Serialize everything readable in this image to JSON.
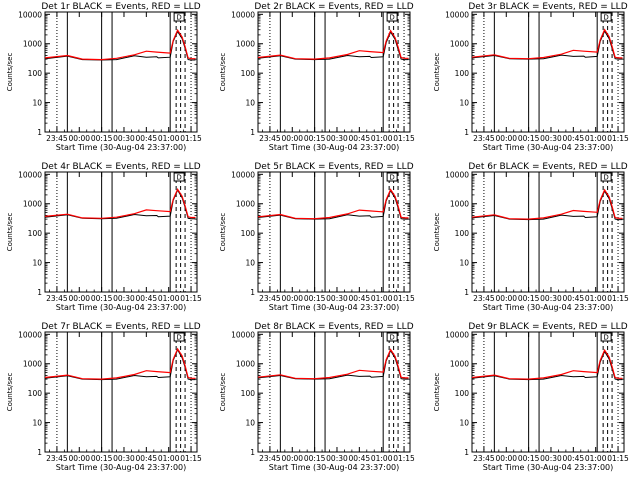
{
  "colors": {
    "events": "#000000",
    "lld": "#ff0000",
    "background": "#ffffff",
    "axes": "#000000"
  },
  "common": {
    "ylabel": "Counts/sec",
    "xlabel": "Start Time (30-Aug-04 23:37:00)",
    "x_ticks": [
      "23:45",
      "00:00",
      "00:15",
      "00:30",
      "00:45",
      "01:00",
      "01:15"
    ],
    "y_ticks": [
      "1",
      "10",
      "100",
      "1000",
      "10000"
    ],
    "marker": "D"
  },
  "chart_data": [
    {
      "type": "line",
      "title": "Det 1r BLACK = Events, RED = LLD",
      "x_unit": "minutes after 23:37:00",
      "xlim": [
        0,
        102
      ],
      "ylim": [
        1,
        12000
      ],
      "y_scale": "log",
      "series": [
        {
          "name": "Events",
          "x": [
            0,
            15,
            25,
            38,
            48,
            60,
            68,
            75,
            76,
            84,
            86,
            89,
            92,
            94,
            96,
            98,
            101
          ],
          "y": [
            310,
            380,
            290,
            280,
            290,
            390,
            350,
            360,
            330,
            350,
            1200,
            2600,
            1500,
            700,
            290,
            280,
            280
          ]
        },
        {
          "name": "LLD",
          "x": [
            0,
            15,
            25,
            38,
            48,
            60,
            68,
            75,
            84,
            86,
            89,
            92,
            94,
            96,
            98,
            101
          ],
          "y": [
            330,
            400,
            300,
            290,
            320,
            420,
            560,
            520,
            480,
            1300,
            2900,
            1700,
            800,
            330,
            310,
            310
          ]
        }
      ]
    },
    {
      "type": "line",
      "title": "Det 2r BLACK = Events, RED = LLD",
      "x_unit": "minutes after 23:37:00",
      "xlim": [
        0,
        102
      ],
      "ylim": [
        1,
        12000
      ],
      "y_scale": "log",
      "series": [
        {
          "name": "Events",
          "x": [
            0,
            15,
            25,
            38,
            48,
            60,
            68,
            75,
            76,
            84,
            86,
            89,
            92,
            94,
            96,
            98,
            101
          ],
          "y": [
            320,
            390,
            300,
            290,
            300,
            400,
            360,
            370,
            340,
            360,
            1100,
            2500,
            1400,
            650,
            300,
            290,
            290
          ]
        },
        {
          "name": "LLD",
          "x": [
            0,
            15,
            25,
            38,
            48,
            60,
            68,
            75,
            84,
            86,
            89,
            92,
            94,
            96,
            98,
            101
          ],
          "y": [
            340,
            410,
            310,
            300,
            330,
            430,
            580,
            540,
            500,
            1250,
            2800,
            1600,
            780,
            340,
            320,
            320
          ]
        }
      ]
    },
    {
      "type": "line",
      "title": "Det 3r BLACK = Events, RED = LLD",
      "x_unit": "minutes after 23:37:00",
      "xlim": [
        0,
        102
      ],
      "ylim": [
        1,
        12000
      ],
      "y_scale": "log",
      "series": [
        {
          "name": "Events",
          "x": [
            0,
            15,
            25,
            38,
            48,
            60,
            68,
            75,
            76,
            84,
            86,
            89,
            92,
            94,
            96,
            98,
            101
          ],
          "y": [
            330,
            400,
            310,
            300,
            310,
            410,
            370,
            380,
            350,
            370,
            1200,
            2700,
            1500,
            700,
            310,
            300,
            300
          ]
        },
        {
          "name": "LLD",
          "x": [
            0,
            15,
            25,
            38,
            48,
            60,
            68,
            75,
            84,
            86,
            89,
            92,
            94,
            96,
            98,
            101
          ],
          "y": [
            350,
            420,
            320,
            310,
            340,
            440,
            600,
            560,
            520,
            1350,
            3000,
            1750,
            820,
            350,
            330,
            330
          ]
        }
      ]
    },
    {
      "type": "line",
      "title": "Det 4r BLACK = Events, RED = LLD",
      "x_unit": "minutes after 23:37:00",
      "xlim": [
        0,
        102
      ],
      "ylim": [
        1,
        12000
      ],
      "y_scale": "log",
      "series": [
        {
          "name": "Events",
          "x": [
            0,
            15,
            25,
            38,
            48,
            60,
            68,
            75,
            76,
            84,
            86,
            89,
            92,
            94,
            96,
            98,
            101
          ],
          "y": [
            350,
            420,
            320,
            310,
            320,
            430,
            390,
            400,
            360,
            380,
            1300,
            2900,
            1600,
            750,
            320,
            310,
            310
          ]
        },
        {
          "name": "LLD",
          "x": [
            0,
            15,
            25,
            38,
            48,
            60,
            68,
            75,
            84,
            86,
            89,
            92,
            94,
            96,
            98,
            101
          ],
          "y": [
            370,
            440,
            330,
            320,
            350,
            460,
            620,
            580,
            540,
            1400,
            3100,
            1800,
            850,
            360,
            340,
            340
          ]
        }
      ]
    },
    {
      "type": "line",
      "title": "Det 5r BLACK = Events, RED = LLD",
      "x_unit": "minutes after 23:37:00",
      "xlim": [
        0,
        102
      ],
      "ylim": [
        1,
        12000
      ],
      "y_scale": "log",
      "series": [
        {
          "name": "Events",
          "x": [
            0,
            15,
            25,
            38,
            48,
            60,
            68,
            75,
            76,
            84,
            86,
            89,
            92,
            94,
            96,
            98,
            101
          ],
          "y": [
            340,
            410,
            310,
            300,
            310,
            420,
            380,
            390,
            350,
            370,
            1250,
            2800,
            1550,
            720,
            310,
            300,
            300
          ]
        },
        {
          "name": "LLD",
          "x": [
            0,
            15,
            25,
            38,
            48,
            60,
            68,
            75,
            84,
            86,
            89,
            92,
            94,
            96,
            98,
            101
          ],
          "y": [
            360,
            430,
            320,
            310,
            340,
            450,
            610,
            570,
            530,
            1380,
            3050,
            1780,
            840,
            350,
            330,
            330
          ]
        }
      ]
    },
    {
      "type": "line",
      "title": "Det 6r BLACK = Events, RED = LLD",
      "x_unit": "minutes after 23:37:00",
      "xlim": [
        0,
        102
      ],
      "ylim": [
        1,
        12000
      ],
      "y_scale": "log",
      "series": [
        {
          "name": "Events",
          "x": [
            0,
            15,
            25,
            38,
            48,
            60,
            68,
            75,
            76,
            84,
            86,
            89,
            92,
            94,
            96,
            98,
            101
          ],
          "y": [
            330,
            400,
            300,
            290,
            300,
            410,
            370,
            380,
            340,
            360,
            1200,
            2700,
            1500,
            700,
            300,
            290,
            290
          ]
        },
        {
          "name": "LLD",
          "x": [
            0,
            15,
            25,
            38,
            48,
            60,
            68,
            75,
            84,
            86,
            89,
            92,
            94,
            96,
            98,
            101
          ],
          "y": [
            350,
            420,
            310,
            300,
            330,
            440,
            590,
            550,
            510,
            1330,
            2950,
            1720,
            810,
            340,
            320,
            320
          ]
        }
      ]
    },
    {
      "type": "line",
      "title": "Det 7r BLACK = Events, RED = LLD",
      "x_unit": "minutes after 23:37:00",
      "xlim": [
        0,
        102
      ],
      "ylim": [
        1,
        12000
      ],
      "y_scale": "log",
      "series": [
        {
          "name": "Events",
          "x": [
            0,
            15,
            25,
            38,
            48,
            60,
            68,
            75,
            76,
            84,
            86,
            89,
            92,
            94,
            96,
            98,
            101
          ],
          "y": [
            320,
            390,
            300,
            290,
            300,
            400,
            360,
            370,
            340,
            360,
            1300,
            3000,
            1600,
            750,
            300,
            290,
            290
          ]
        },
        {
          "name": "LLD",
          "x": [
            0,
            15,
            25,
            38,
            48,
            60,
            68,
            75,
            84,
            86,
            89,
            92,
            94,
            96,
            98,
            101
          ],
          "y": [
            340,
            410,
            310,
            300,
            330,
            430,
            580,
            540,
            500,
            1420,
            3200,
            1850,
            860,
            340,
            320,
            320
          ]
        }
      ]
    },
    {
      "type": "line",
      "title": "Det 8r BLACK = Events, RED = LLD",
      "x_unit": "minutes after 23:37:00",
      "xlim": [
        0,
        102
      ],
      "ylim": [
        1,
        12000
      ],
      "y_scale": "log",
      "series": [
        {
          "name": "Events",
          "x": [
            0,
            15,
            25,
            38,
            48,
            60,
            68,
            75,
            76,
            84,
            86,
            89,
            92,
            94,
            96,
            98,
            101
          ],
          "y": [
            330,
            400,
            310,
            300,
            310,
            410,
            370,
            380,
            350,
            370,
            1250,
            2800,
            1550,
            720,
            310,
            300,
            300
          ]
        },
        {
          "name": "LLD",
          "x": [
            0,
            15,
            25,
            38,
            48,
            60,
            68,
            75,
            84,
            86,
            89,
            92,
            94,
            96,
            98,
            101
          ],
          "y": [
            350,
            420,
            320,
            310,
            340,
            440,
            600,
            560,
            520,
            1380,
            3050,
            1780,
            840,
            350,
            330,
            330
          ]
        }
      ]
    },
    {
      "type": "line",
      "title": "Det 9r BLACK = Events, RED = LLD",
      "x_unit": "minutes after 23:37:00",
      "xlim": [
        0,
        102
      ],
      "ylim": [
        1,
        12000
      ],
      "y_scale": "log",
      "series": [
        {
          "name": "Events",
          "x": [
            0,
            15,
            25,
            38,
            48,
            60,
            68,
            75,
            76,
            84,
            86,
            89,
            92,
            94,
            96,
            98,
            101
          ],
          "y": [
            320,
            390,
            300,
            290,
            300,
            400,
            360,
            370,
            340,
            360,
            1150,
            2600,
            1450,
            680,
            300,
            290,
            290
          ]
        },
        {
          "name": "LLD",
          "x": [
            0,
            15,
            25,
            38,
            48,
            60,
            68,
            75,
            84,
            86,
            89,
            92,
            94,
            96,
            98,
            101
          ],
          "y": [
            340,
            410,
            310,
            300,
            330,
            430,
            580,
            540,
            500,
            1300,
            2900,
            1700,
            800,
            340,
            320,
            320
          ]
        }
      ]
    }
  ]
}
